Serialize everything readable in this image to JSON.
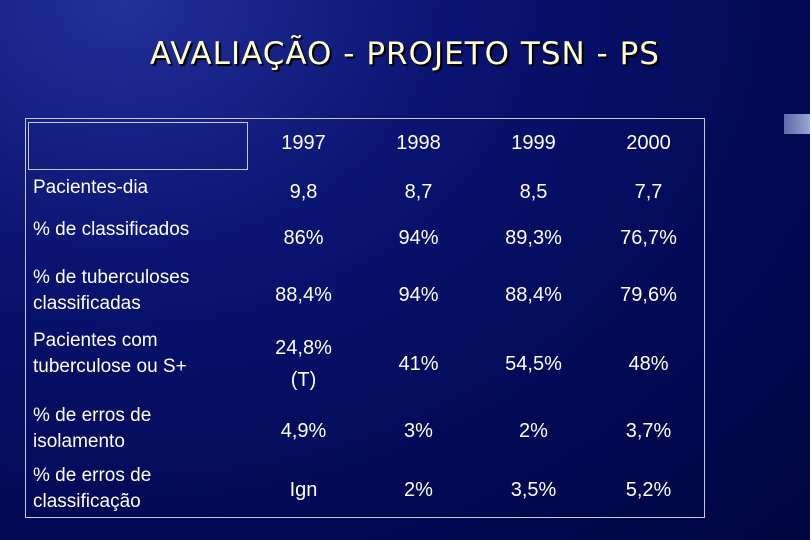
{
  "header": {
    "title": "AVALIAÇÃO - PROJETO TSN - PS"
  },
  "table": {
    "columns": [
      "1997",
      "1998",
      "1999",
      "2000"
    ],
    "rows": [
      {
        "label": [
          "Pacientes-dia"
        ],
        "values": [
          "9,8",
          "8,7",
          "8,5",
          "7,7"
        ]
      },
      {
        "label": [
          "% de classificados"
        ],
        "values": [
          "86%",
          "94%",
          "89,3%",
          "76,7%"
        ]
      },
      {
        "label": [
          "% de tuberculoses",
          "classificadas"
        ],
        "values": [
          "88,4%",
          "94%",
          "88,4%",
          "79,6%"
        ]
      },
      {
        "label": [
          "Pacientes com",
          "tuberculose ou S+"
        ],
        "values": [
          [
            "24,8%",
            "(T)"
          ],
          "41%",
          "54,5%",
          "48%"
        ]
      },
      {
        "label": [
          "% de erros de",
          "isolamento"
        ],
        "values": [
          "4,9%",
          "3%",
          "2%",
          "3,7%"
        ]
      },
      {
        "label": [
          "% de erros de",
          "classificação"
        ],
        "values": [
          "Ign",
          "2%",
          "3,5%",
          "5,2%"
        ]
      }
    ]
  }
}
